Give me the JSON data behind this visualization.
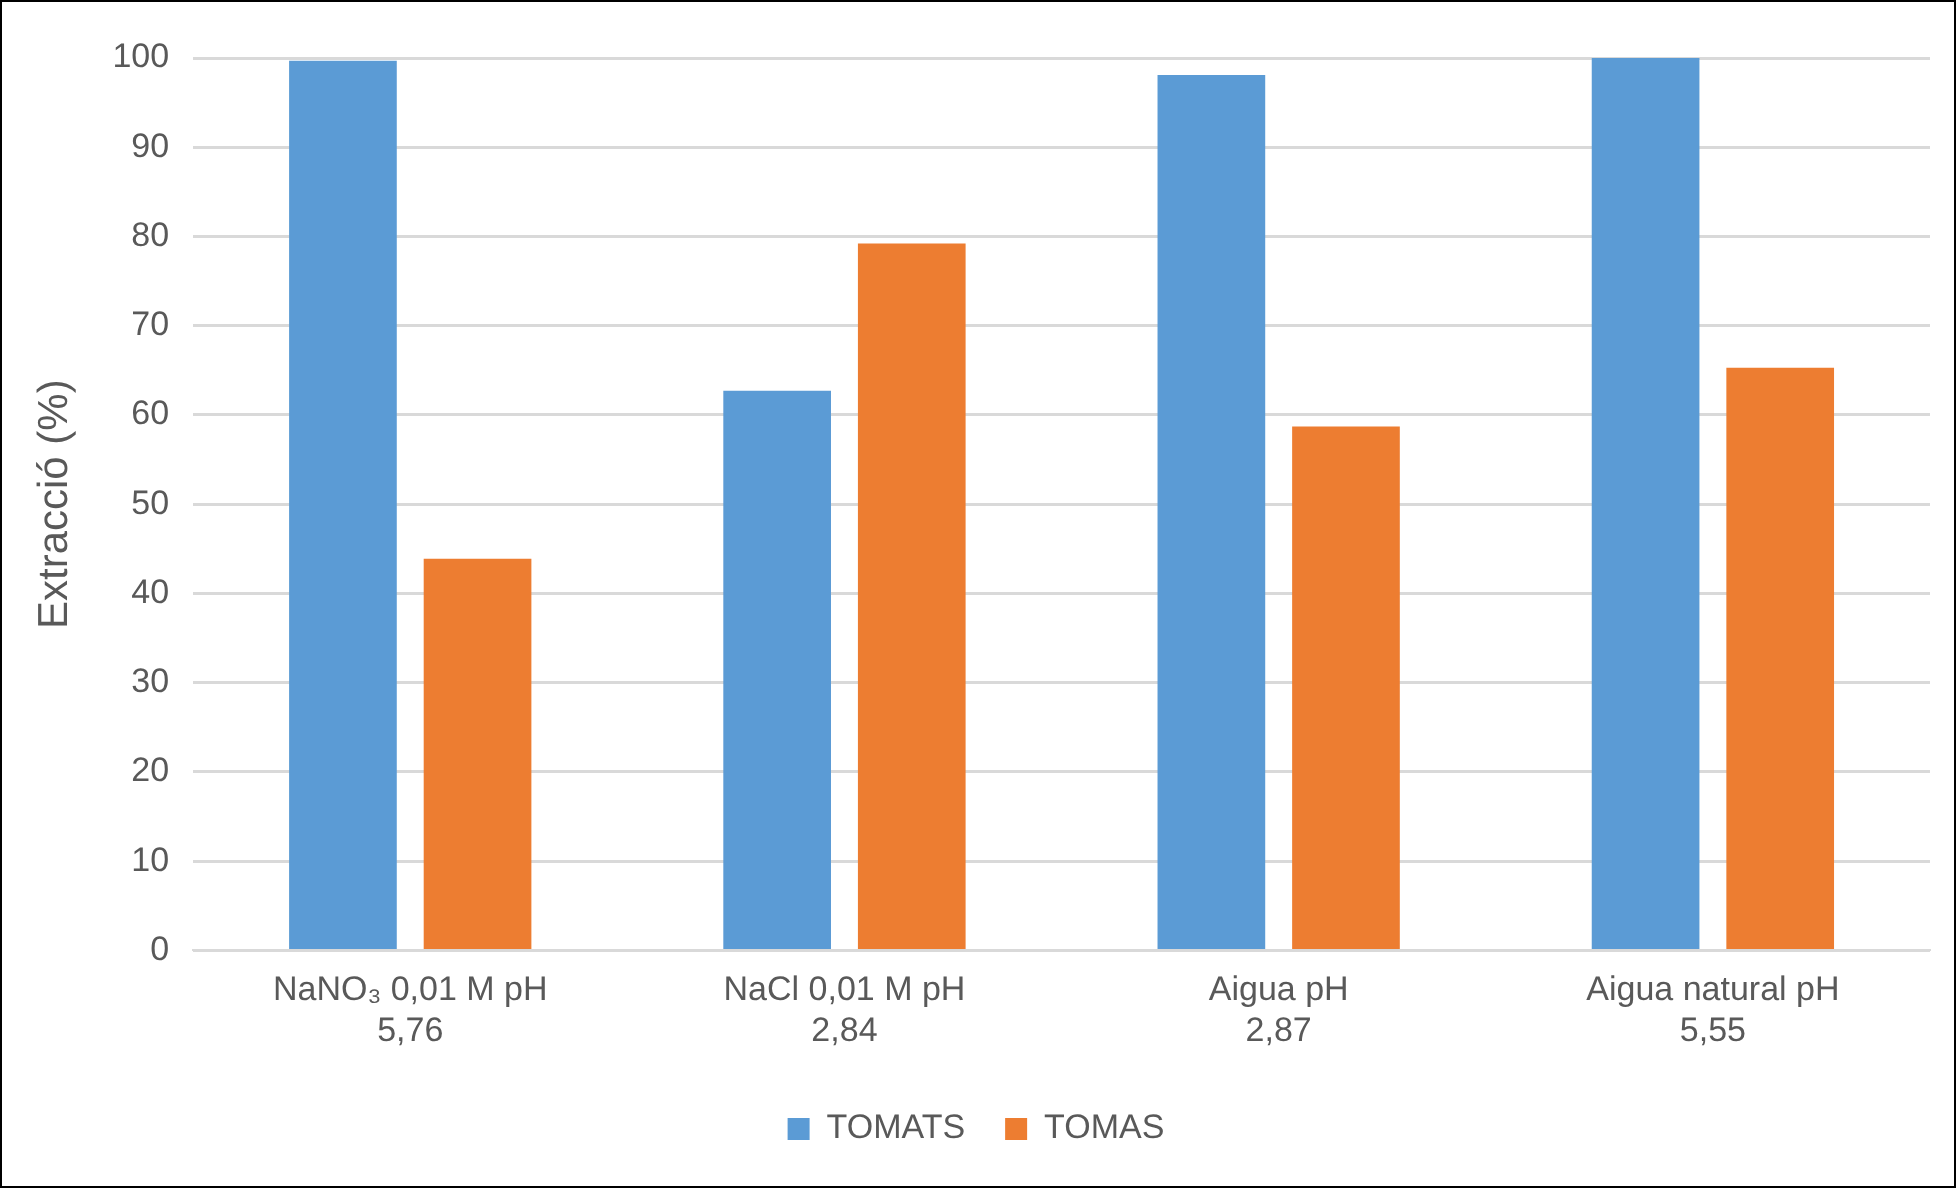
{
  "chart_data": {
    "type": "bar",
    "ylabel": "Extracció (%)",
    "categories": [
      "NaNO₃ 0,01 M pH 5,76",
      "NaCl 0,01 M pH 2,84",
      "Aigua pH 2,87",
      "Aigua natural pH 5,55"
    ],
    "series": [
      {
        "name": "TOMATS",
        "color": "#5b9bd5",
        "values": [
          99.7,
          62.7,
          98.1,
          100
        ]
      },
      {
        "name": "TOMAS",
        "color": "#ed7d31",
        "values": [
          43.9,
          79.2,
          58.7,
          65.3
        ]
      }
    ],
    "ylim": [
      0,
      100
    ],
    "yticks": [
      0,
      10,
      20,
      30,
      40,
      50,
      60,
      70,
      80,
      90,
      100
    ],
    "grid": "y",
    "legend": "bottom"
  }
}
